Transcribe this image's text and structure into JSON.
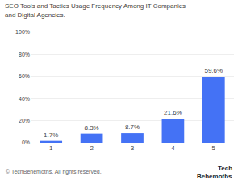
{
  "chart_data": {
    "type": "bar",
    "title": "SEO Tools and Tactics Usage Frequency Among IT Companies\nand Digital Agencies.",
    "categories": [
      "1",
      "2",
      "3",
      "4",
      "5"
    ],
    "values": [
      1.7,
      8.3,
      8.7,
      21.6,
      59.6
    ],
    "value_labels": [
      "1.7%",
      "8.3%",
      "8.7%",
      "21.6%",
      "59.6%"
    ],
    "data_labels": true,
    "color": "#4472f5",
    "ylim": [
      0,
      100
    ],
    "yticks": [
      {
        "value": 0,
        "label": "0%"
      },
      {
        "value": 20,
        "label": "20%"
      },
      {
        "value": 40,
        "label": "40%"
      },
      {
        "value": 60,
        "label": "60%"
      },
      {
        "value": 80,
        "label": "80%"
      },
      {
        "value": 100,
        "label": "100%"
      }
    ],
    "grid": true,
    "annotations": [
      "© TechBehemoths. All rights reserved.",
      "Tech",
      "Behemoths"
    ]
  }
}
